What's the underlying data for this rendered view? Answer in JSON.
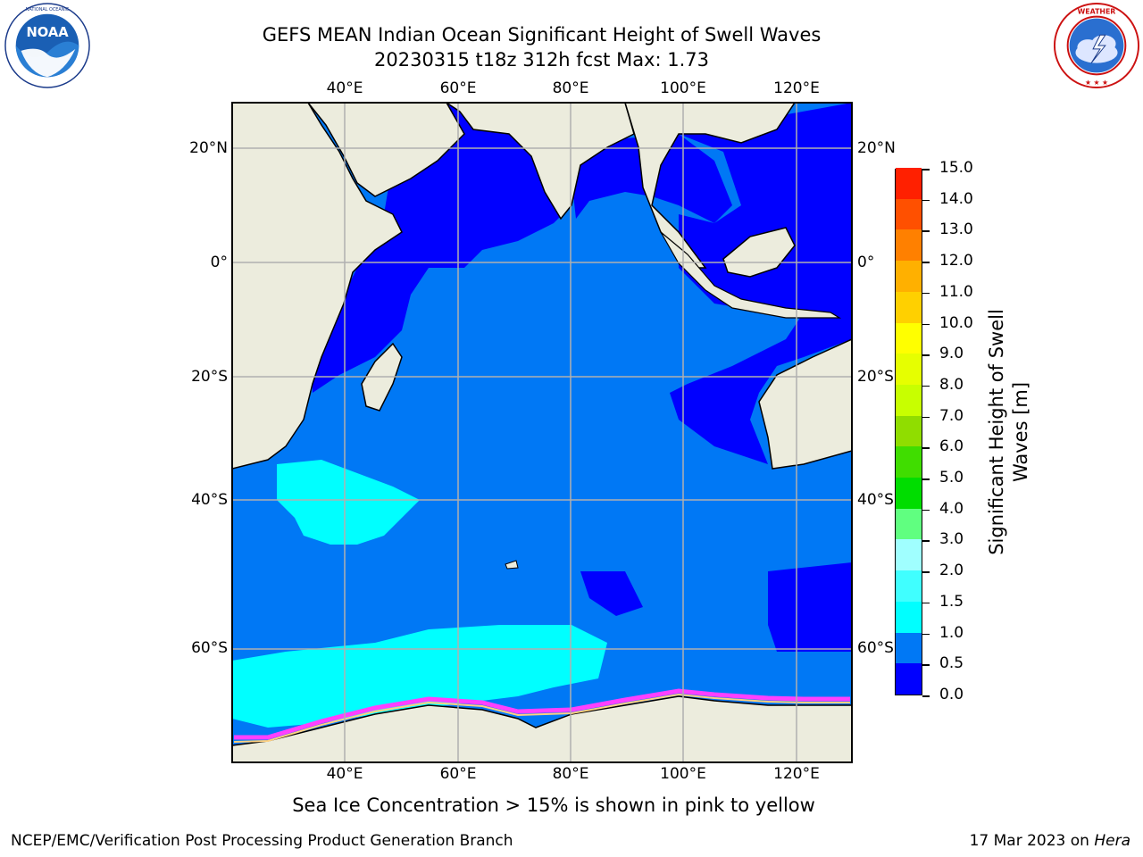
{
  "title": {
    "line1": "GEFS MEAN Indian Ocean Significant Height of Swell Waves",
    "line2": "20230315 t18z 312h fcst   Max: 1.73"
  },
  "logos": [
    {
      "name": "noaa-logo",
      "text": "NOAA",
      "ring_text": "NATIONAL OCEANIC AND ATMOSPHERIC ADMINISTRATION · U.S. DEPARTMENT OF COMMERCE"
    },
    {
      "name": "nws-logo",
      "ring_text": "NATIONAL WEATHER SERVICE"
    }
  ],
  "axes": {
    "lon_ticks": [
      "40°E",
      "60°E",
      "80°E",
      "100°E",
      "120°E"
    ],
    "lat_ticks": [
      "20°N",
      "0°",
      "20°S",
      "40°S",
      "60°S"
    ],
    "lon_range": [
      20,
      130
    ],
    "lat_range": [
      28,
      -88
    ],
    "grid": true
  },
  "colorbar": {
    "title_line1": "Significant Height of Swell",
    "title_line2": "Waves [m]",
    "labels": [
      "15.0",
      "14.0",
      "13.0",
      "12.0",
      "11.0",
      "10.0",
      "9.0",
      "8.0",
      "7.0",
      "6.0",
      "5.0",
      "4.0",
      "3.0",
      "2.0",
      "1.5",
      "1.0",
      "0.5",
      "0.0"
    ],
    "levels": [
      0.0,
      0.5,
      1.0,
      1.5,
      2.0,
      3.0,
      4.0,
      5.0,
      6.0,
      7.0,
      8.0,
      9.0,
      10.0,
      11.0,
      12.0,
      13.0,
      14.0,
      15.0
    ],
    "colors": [
      "#0000ff",
      "#0078f5",
      "#00ffff",
      "#40ffff",
      "#a0ffff",
      "#60ff80",
      "#00dd00",
      "#40dd00",
      "#90dd00",
      "#c8ff00",
      "#e6ff00",
      "#ffff00",
      "#ffd000",
      "#ffb000",
      "#ff8000",
      "#ff5000",
      "#ff2000",
      "#ff0000"
    ]
  },
  "colors": {
    "land": "#ececdd",
    "ocean_low": "#0000ff",
    "ocean_mid": "#0078f5",
    "swell_high": "#00ffff",
    "sea_ice": "#ff40ff"
  },
  "note": "Sea Ice Concentration > 15% is shown in pink to yellow",
  "footer": {
    "left": "NCEP/EMC/Verification Post Processing Product Generation Branch",
    "right_prefix": "17 Mar 2023 on ",
    "right_host": "Hera"
  }
}
